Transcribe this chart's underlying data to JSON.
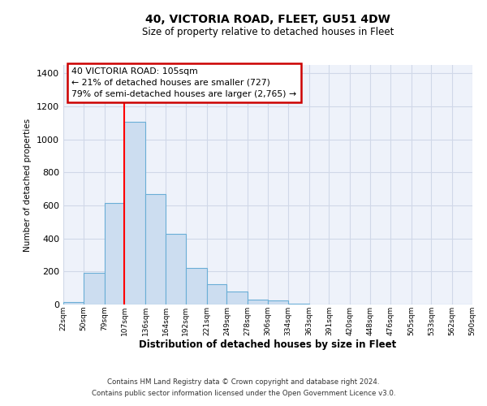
{
  "title": "40, VICTORIA ROAD, FLEET, GU51 4DW",
  "subtitle": "Size of property relative to detached houses in Fleet",
  "xlabel": "Distribution of detached houses by size in Fleet",
  "ylabel": "Number of detached properties",
  "bin_edges": [
    22,
    50,
    79,
    107,
    136,
    164,
    192,
    221,
    249,
    278,
    306,
    334,
    363,
    391,
    420,
    448,
    476,
    505,
    533,
    562,
    590
  ],
  "bar_heights": [
    15,
    190,
    615,
    1105,
    670,
    430,
    220,
    125,
    80,
    30,
    25,
    5,
    2,
    0,
    0,
    0,
    0,
    0,
    0,
    0
  ],
  "bar_color": "#ccddf0",
  "bar_edgecolor": "#6aaed6",
  "bar_linewidth": 0.8,
  "vline_x": 107,
  "vline_color": "red",
  "vline_linewidth": 1.5,
  "ylim": [
    0,
    1450
  ],
  "annotation_line1": "40 VICTORIA ROAD: 105sqm",
  "annotation_line2": "← 21% of detached houses are smaller (727)",
  "annotation_line3": "79% of semi-detached houses are larger (2,765) →",
  "annotation_box_edgecolor": "#cc0000",
  "annotation_box_facecolor": "white",
  "footer_line1": "Contains HM Land Registry data © Crown copyright and database right 2024.",
  "footer_line2": "Contains public sector information licensed under the Open Government Licence v3.0.",
  "background_color": "#eef2fa",
  "grid_color": "#d0d8e8",
  "tick_labels": [
    "22sqm",
    "50sqm",
    "79sqm",
    "107sqm",
    "136sqm",
    "164sqm",
    "192sqm",
    "221sqm",
    "249sqm",
    "278sqm",
    "306sqm",
    "334sqm",
    "363sqm",
    "391sqm",
    "420sqm",
    "448sqm",
    "476sqm",
    "505sqm",
    "533sqm",
    "562sqm",
    "590sqm"
  ]
}
